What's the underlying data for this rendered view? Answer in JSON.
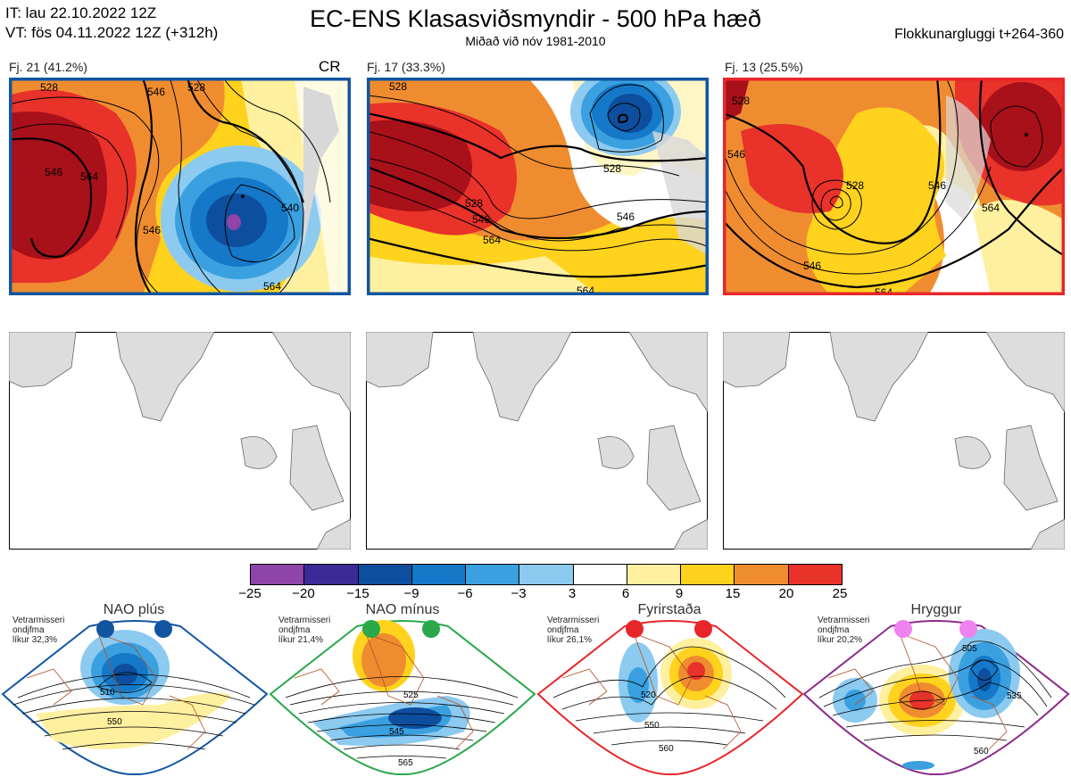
{
  "header": {
    "it_line": "IT: lau 22.10.2022 12Z",
    "vt_line": "VT: fös 04.11.2022 12Z  (+312h)",
    "title": "EC-ENS Klasasviðsmyndir - 500 hPa hæð",
    "subtitle": "Miðað við nóv 1981-2010",
    "window": "Flokkunargluggi t+264-360"
  },
  "clusters": [
    {
      "label": "Fj. 21 (41.2%)",
      "tag": "CR",
      "frame_color": "#1155a0"
    },
    {
      "label": "Fj. 17 (33.3%)",
      "tag": "",
      "frame_color": "#1155a0"
    },
    {
      "label": "Fj. 13 (25.5%)",
      "tag": "",
      "frame_color": "#e8262a"
    }
  ],
  "contour_labels": {
    "p1": [
      "528",
      "546",
      "528",
      "546",
      "564",
      "540",
      "546",
      "564"
    ],
    "p2": [
      "528",
      "528",
      "546",
      "564",
      "546",
      "528",
      "564"
    ],
    "p3": [
      "528",
      "546",
      "528",
      "564",
      "546",
      "546",
      "564"
    ]
  },
  "colorbar": {
    "ticks": [
      "−25",
      "−20",
      "−15",
      "−9",
      "−6",
      "−3",
      "3",
      "6",
      "9",
      "15",
      "20",
      "25"
    ],
    "colors": [
      "#8e44a8",
      "#3c2a96",
      "#0d4f9e",
      "#1578c8",
      "#3aa0e0",
      "#8ccaf0",
      "#ffffff",
      "#fff0a0",
      "#ffd21e",
      "#f08c30",
      "#e8322a",
      "#a8101a"
    ]
  },
  "regimes": [
    {
      "name": "NAO plús",
      "note": [
        "Vetrarmisseri",
        "ondjfma",
        "líkur 32,3%"
      ],
      "dot_color": "#1155a0",
      "frame_color": "#1155a0",
      "labels": [
        "510",
        "550"
      ]
    },
    {
      "name": "NAO mínus",
      "note": [
        "Vetrarmisseri",
        "ondjfma",
        "líkur 21,4%"
      ],
      "dot_color": "#2aa84a",
      "frame_color": "#2aa84a",
      "labels": [
        "525",
        "545",
        "565"
      ]
    },
    {
      "name": "Fyrirstaða",
      "note": [
        "Vetrarmisseri",
        "ondjfma",
        "líkur 26,1%"
      ],
      "dot_color": "#e8262a",
      "frame_color": "#e8262a",
      "labels": [
        "520",
        "550",
        "560"
      ]
    },
    {
      "name": "Hryggur",
      "note": [
        "Vetrarmisseri",
        "ondjfma",
        "líkur 20,2%"
      ],
      "dot_color": "#ee82ee",
      "frame_color": "#8b2a8c",
      "labels": [
        "505",
        "535",
        "560"
      ]
    }
  ]
}
